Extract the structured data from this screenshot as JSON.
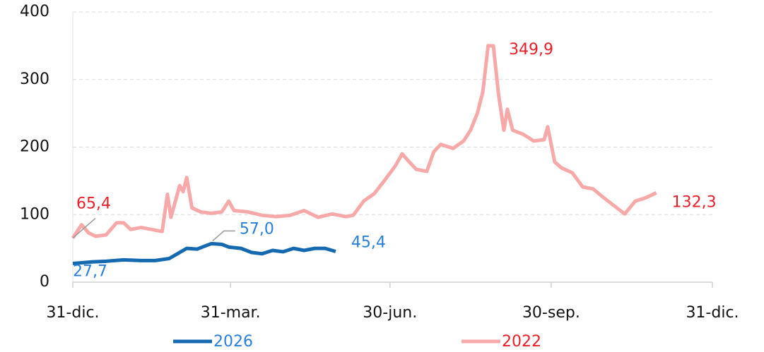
{
  "chart_data": {
    "type": "line",
    "xlim": [
      0,
      365
    ],
    "xticks": [
      {
        "value": 0,
        "label": "31-dic."
      },
      {
        "value": 90,
        "label": "31-mar."
      },
      {
        "value": 181,
        "label": "30-jun."
      },
      {
        "value": 273,
        "label": "30-sep."
      },
      {
        "value": 365,
        "label": "31-dic."
      }
    ],
    "ylim": [
      0,
      400
    ],
    "yticks": [
      0,
      100,
      200,
      300,
      400
    ],
    "grid": true,
    "series": [
      {
        "name": "2026",
        "color": "#1569b0",
        "x": [
          0,
          11,
          19,
          29,
          39,
          47,
          55,
          61,
          65,
          71,
          77,
          79,
          85,
          89,
          96,
          102,
          108,
          114,
          120,
          126,
          132,
          138,
          144,
          150
        ],
        "values": [
          27.7,
          30,
          31,
          33,
          32,
          32,
          35,
          44,
          50,
          49,
          55,
          57.0,
          56,
          52,
          50,
          44,
          42,
          47,
          45,
          50,
          47,
          50,
          50,
          45.4
        ]
      },
      {
        "name": "2022",
        "color": "#f7a8a8",
        "x": [
          0,
          5,
          9,
          13,
          19,
          25,
          29,
          33,
          39,
          45,
          51,
          54,
          56,
          61,
          63,
          65,
          68,
          73,
          79,
          85,
          89,
          92,
          100,
          108,
          116,
          124,
          132,
          140,
          148,
          152,
          156,
          160,
          166,
          172,
          178,
          184,
          188,
          192,
          196,
          202,
          206,
          210,
          217,
          223,
          227,
          231,
          234,
          237,
          240,
          243,
          246,
          248,
          251,
          257,
          263,
          269,
          271,
          275,
          279,
          285,
          291,
          297,
          303,
          309,
          315,
          321,
          327,
          333
        ],
        "values": [
          65.4,
          85,
          73,
          68,
          70,
          88,
          88,
          78,
          81,
          78,
          75,
          130,
          96,
          143,
          134,
          155,
          110,
          104,
          102,
          104,
          120,
          106,
          104,
          99,
          97,
          99,
          106,
          96,
          101,
          99,
          97,
          99,
          120,
          131,
          151,
          172,
          190,
          178,
          167,
          164,
          193,
          204,
          198,
          209,
          225,
          251,
          282,
          350,
          349.9,
          277,
          225,
          256,
          225,
          219,
          209,
          211,
          230,
          178,
          169,
          162,
          141,
          138,
          125,
          113,
          101,
          120,
          125,
          132.3
        ]
      }
    ],
    "annotations": [
      {
        "text": "65,4",
        "x": 0,
        "y": 65.4,
        "color": "#e8202a"
      },
      {
        "text": "27,7",
        "x": 0,
        "y": 27.7,
        "color": "#2a7fd8"
      },
      {
        "text": "57,0",
        "x": 79,
        "y": 57.0,
        "color": "#2a7fd8"
      },
      {
        "text": "45,4",
        "x": 150,
        "y": 45.4,
        "color": "#2a7fd8"
      },
      {
        "text": "349,9",
        "x": 240,
        "y": 349.9,
        "color": "#e8202a"
      },
      {
        "text": "132,3",
        "x": 333,
        "y": 132.3,
        "color": "#e8202a"
      }
    ]
  }
}
